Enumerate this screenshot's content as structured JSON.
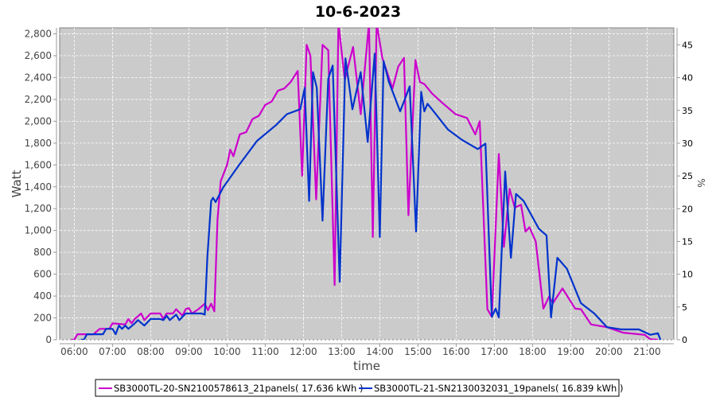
{
  "chart_data": {
    "type": "line",
    "title": "10-6-2023",
    "xlabel": "time",
    "ylabel": "Watt",
    "y2label": "%",
    "xlim": [
      "05:37",
      "21:42"
    ],
    "ylim": [
      0,
      2855
    ],
    "y2lim": [
      0,
      47.6
    ],
    "grid": true,
    "legend_position": "bottom",
    "background": "#cbcbcb",
    "x_ticks": [
      "06:00",
      "07:00",
      "08:00",
      "09:00",
      "10:00",
      "11:00",
      "12:00",
      "13:00",
      "14:00",
      "15:00",
      "16:00",
      "17:00",
      "18:00",
      "19:00",
      "20:00",
      "21:00"
    ],
    "y_ticks": [
      "0",
      "200",
      "400",
      "600",
      "800",
      "1,000",
      "1,200",
      "1,400",
      "1,600",
      "1,800",
      "2,000",
      "2,200",
      "2,400",
      "2,600",
      "2,800"
    ],
    "y2_ticks": [
      "0",
      "5",
      "10",
      "15",
      "20",
      "25",
      "30",
      "35",
      "40",
      "45"
    ],
    "series": [
      {
        "name": "SB3000TL-20-SN2100578613_21panels( 17.636 kWh )",
        "color": "#cc00cc",
        "points": [
          [
            "05:55",
            0
          ],
          [
            "06:00",
            0
          ],
          [
            "06:05",
            50
          ],
          [
            "06:30",
            50
          ],
          [
            "06:40",
            100
          ],
          [
            "06:55",
            100
          ],
          [
            "07:00",
            150
          ],
          [
            "07:20",
            140
          ],
          [
            "07:25",
            190
          ],
          [
            "07:30",
            150
          ],
          [
            "07:35",
            190
          ],
          [
            "07:45",
            240
          ],
          [
            "07:50",
            180
          ],
          [
            "08:00",
            240
          ],
          [
            "08:15",
            240
          ],
          [
            "08:20",
            190
          ],
          [
            "08:25",
            240
          ],
          [
            "08:35",
            240
          ],
          [
            "08:40",
            280
          ],
          [
            "08:50",
            220
          ],
          [
            "08:55",
            280
          ],
          [
            "09:00",
            290
          ],
          [
            "09:05",
            240
          ],
          [
            "09:15",
            280
          ],
          [
            "09:25",
            330
          ],
          [
            "09:30",
            270
          ],
          [
            "09:35",
            330
          ],
          [
            "09:40",
            260
          ],
          [
            "09:45",
            1100
          ],
          [
            "09:50",
            1450
          ],
          [
            "10:00",
            1600
          ],
          [
            "10:05",
            1740
          ],
          [
            "10:10",
            1680
          ],
          [
            "10:20",
            1880
          ],
          [
            "10:30",
            1900
          ],
          [
            "10:40",
            2020
          ],
          [
            "10:50",
            2050
          ],
          [
            "11:00",
            2150
          ],
          [
            "11:10",
            2180
          ],
          [
            "11:20",
            2280
          ],
          [
            "11:30",
            2300
          ],
          [
            "11:40",
            2360
          ],
          [
            "11:51",
            2460
          ],
          [
            "11:58",
            1500
          ],
          [
            "12:05",
            2700
          ],
          [
            "12:11",
            2600
          ],
          [
            "12:20",
            1285
          ],
          [
            "12:30",
            2700
          ],
          [
            "12:39",
            2650
          ],
          [
            "12:49",
            500
          ],
          [
            "12:55",
            2900
          ],
          [
            "13:05",
            2380
          ],
          [
            "13:18",
            2680
          ],
          [
            "13:30",
            2065
          ],
          [
            "13:43",
            2900
          ],
          [
            "13:49",
            940
          ],
          [
            "13:55",
            2900
          ],
          [
            "14:04",
            2580
          ],
          [
            "14:20",
            2300
          ],
          [
            "14:29",
            2500
          ],
          [
            "14:38",
            2580
          ],
          [
            "14:45",
            1140
          ],
          [
            "14:56",
            2560
          ],
          [
            "15:03",
            2360
          ],
          [
            "15:10",
            2340
          ],
          [
            "15:22",
            2255
          ],
          [
            "15:37",
            2175
          ],
          [
            "15:59",
            2065
          ],
          [
            "16:17",
            2030
          ],
          [
            "16:30",
            1880
          ],
          [
            "16:37",
            2000
          ],
          [
            "16:49",
            280
          ],
          [
            "16:56",
            210
          ],
          [
            "17:07",
            1700
          ],
          [
            "17:15",
            850
          ],
          [
            "17:24",
            1380
          ],
          [
            "17:32",
            1210
          ],
          [
            "17:42",
            1235
          ],
          [
            "17:49",
            990
          ],
          [
            "17:55",
            1030
          ],
          [
            "18:05",
            900
          ],
          [
            "18:17",
            285
          ],
          [
            "18:26",
            395
          ],
          [
            "18:32",
            335
          ],
          [
            "18:47",
            470
          ],
          [
            "19:07",
            285
          ],
          [
            "19:16",
            280
          ],
          [
            "19:32",
            140
          ],
          [
            "19:57",
            115
          ],
          [
            "20:22",
            65
          ],
          [
            "20:56",
            45
          ],
          [
            "21:05",
            5
          ],
          [
            "21:17",
            0
          ]
        ]
      },
      {
        "name": "SB3000TL-21-SN2130032031_19panels( 16.839 kWh )",
        "color": "#0033cc",
        "points": [
          [
            "06:10",
            0
          ],
          [
            "06:15",
            0
          ],
          [
            "06:20",
            50
          ],
          [
            "06:45",
            50
          ],
          [
            "06:50",
            100
          ],
          [
            "07:00",
            100
          ],
          [
            "07:05",
            50
          ],
          [
            "07:10",
            130
          ],
          [
            "07:15",
            100
          ],
          [
            "07:20",
            130
          ],
          [
            "07:25",
            100
          ],
          [
            "07:35",
            150
          ],
          [
            "07:40",
            180
          ],
          [
            "07:50",
            130
          ],
          [
            "08:00",
            190
          ],
          [
            "08:15",
            190
          ],
          [
            "08:20",
            180
          ],
          [
            "08:25",
            220
          ],
          [
            "08:30",
            180
          ],
          [
            "08:40",
            230
          ],
          [
            "08:45",
            180
          ],
          [
            "08:55",
            240
          ],
          [
            "09:20",
            240
          ],
          [
            "09:25",
            230
          ],
          [
            "09:29",
            750
          ],
          [
            "09:35",
            1270
          ],
          [
            "09:38",
            1300
          ],
          [
            "09:42",
            1260
          ],
          [
            "09:50",
            1350
          ],
          [
            "09:54",
            1395
          ],
          [
            "10:19",
            1600
          ],
          [
            "10:47",
            1820
          ],
          [
            "11:17",
            1965
          ],
          [
            "11:34",
            2065
          ],
          [
            "11:55",
            2110
          ],
          [
            "12:02",
            2305
          ],
          [
            "12:09",
            1270
          ],
          [
            "12:15",
            2450
          ],
          [
            "12:21",
            2305
          ],
          [
            "12:30",
            1090
          ],
          [
            "12:39",
            2390
          ],
          [
            "12:46",
            2510
          ],
          [
            "12:57",
            530
          ],
          [
            "13:06",
            2575
          ],
          [
            "13:17",
            2110
          ],
          [
            "13:30",
            2450
          ],
          [
            "13:41",
            1810
          ],
          [
            "13:52",
            2620
          ],
          [
            "14:00",
            940
          ],
          [
            "14:06",
            2550
          ],
          [
            "14:14",
            2365
          ],
          [
            "14:32",
            2090
          ],
          [
            "14:47",
            2320
          ],
          [
            "14:57",
            990
          ],
          [
            "15:05",
            2270
          ],
          [
            "15:10",
            2090
          ],
          [
            "15:15",
            2160
          ],
          [
            "15:22",
            2110
          ],
          [
            "15:47",
            1925
          ],
          [
            "16:09",
            1830
          ],
          [
            "16:34",
            1745
          ],
          [
            "16:46",
            1795
          ],
          [
            "16:56",
            210
          ],
          [
            "17:02",
            285
          ],
          [
            "17:07",
            205
          ],
          [
            "17:17",
            1540
          ],
          [
            "17:26",
            750
          ],
          [
            "17:34",
            1335
          ],
          [
            "17:46",
            1270
          ],
          [
            "18:10",
            1015
          ],
          [
            "18:22",
            955
          ],
          [
            "18:29",
            205
          ],
          [
            "18:39",
            750
          ],
          [
            "18:54",
            650
          ],
          [
            "19:16",
            335
          ],
          [
            "19:37",
            240
          ],
          [
            "19:57",
            115
          ],
          [
            "20:19",
            95
          ],
          [
            "20:47",
            95
          ],
          [
            "21:05",
            45
          ],
          [
            "21:17",
            60
          ],
          [
            "21:21",
            0
          ]
        ]
      }
    ]
  }
}
